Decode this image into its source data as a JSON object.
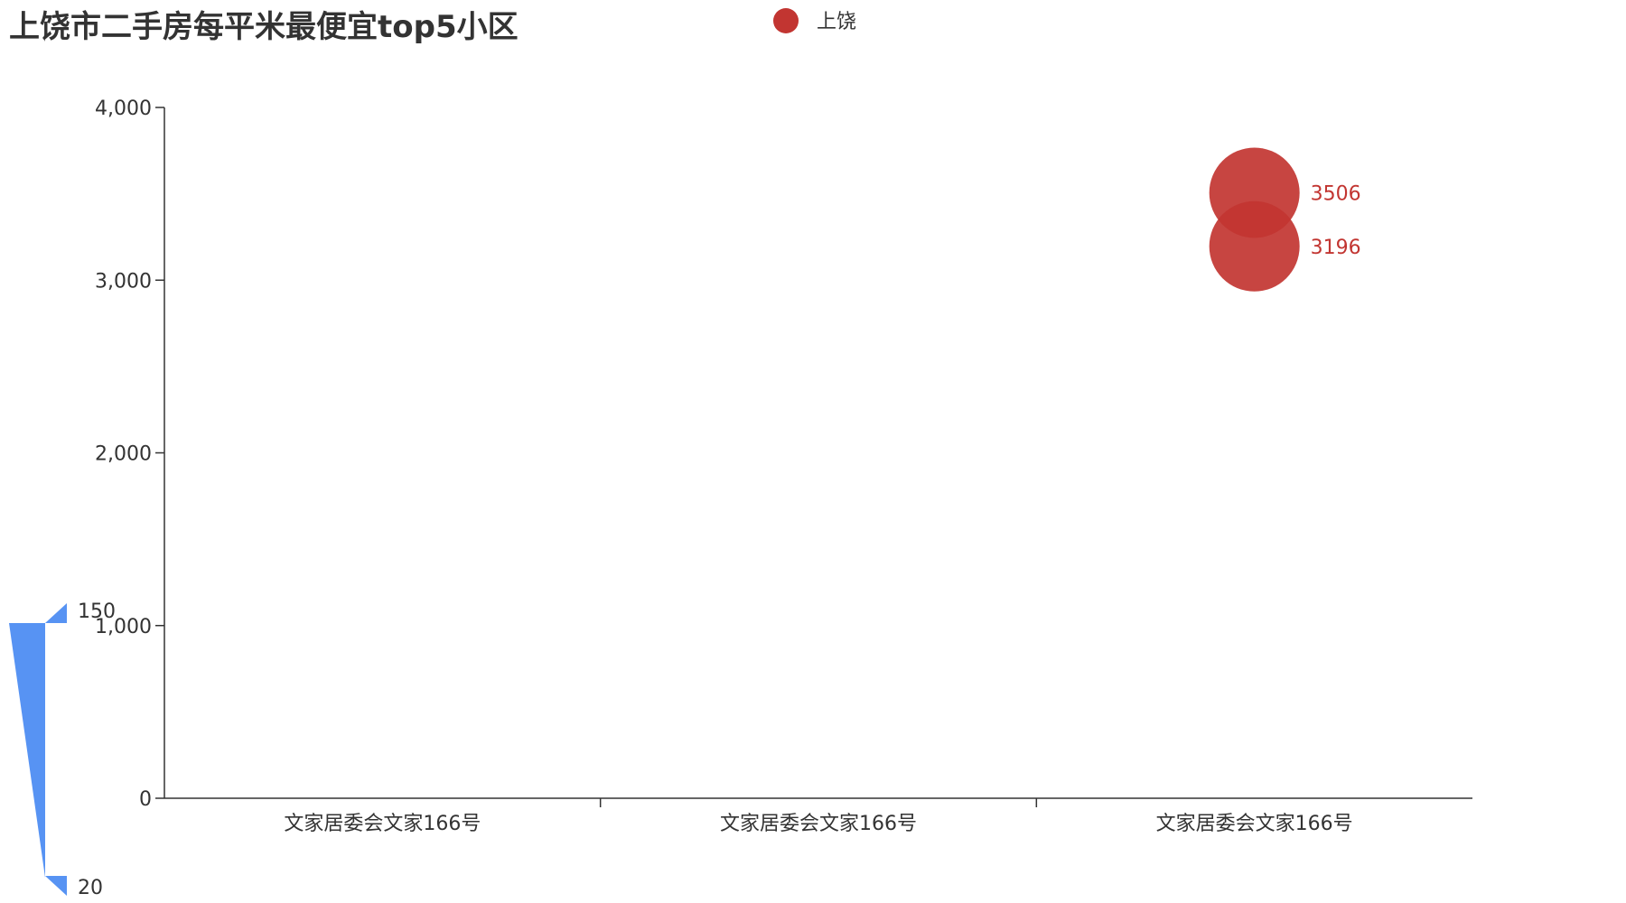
{
  "chart_data": {
    "type": "scatter",
    "title": "上饶市二手房每平米最便宜top5小区",
    "xlabel": "",
    "ylabel": "",
    "categories": [
      "文家居委会文家166号",
      "文家居委会文家166号",
      "文家居委会文家166号"
    ],
    "ylim": [
      0,
      4000
    ],
    "yticks": [
      "0",
      "1,000",
      "2,000",
      "3,000",
      "4,000"
    ],
    "grid": false,
    "legend": {
      "position": "top-center",
      "entries": [
        "上饶"
      ]
    },
    "series": [
      {
        "name": "上饶",
        "color": "#c23531",
        "points": [
          {
            "category_index": 2,
            "value": 3506,
            "label": "3506"
          },
          {
            "category_index": 2,
            "value": 3196,
            "label": "3196"
          }
        ]
      }
    ],
    "visual_map": {
      "min": 20,
      "max": 150,
      "max_label": "150",
      "min_label": "20",
      "color": "#5793f3",
      "position": "bottom-left"
    }
  }
}
